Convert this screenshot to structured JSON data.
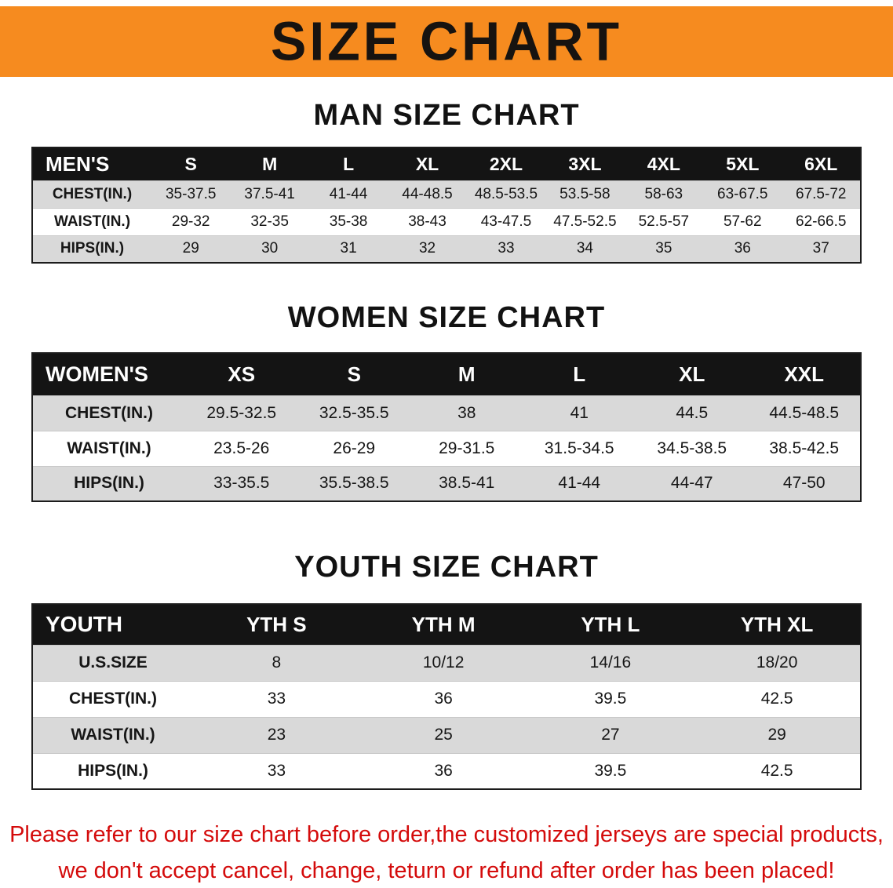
{
  "banner": {
    "title": "SIZE CHART",
    "background": "#f68b1f",
    "text_color": "#171310"
  },
  "footer": {
    "line1": "Please refer to our size chart before order,the customized jerseys are special products,",
    "line2": "we don't accept cancel, change, teturn or refund after order has been placed!",
    "color": "#d40b0b"
  },
  "chart_data": [
    {
      "type": "table",
      "title": "MAN SIZE CHART",
      "corner_label": "MEN'S",
      "columns": [
        "S",
        "M",
        "L",
        "XL",
        "2XL",
        "3XL",
        "4XL",
        "5XL",
        "6XL"
      ],
      "rows": [
        {
          "label": "CHEST(IN.)",
          "values": [
            "35-37.5",
            "37.5-41",
            "41-44",
            "44-48.5",
            "48.5-53.5",
            "53.5-58",
            "58-63",
            "63-67.5",
            "67.5-72"
          ]
        },
        {
          "label": "WAIST(IN.)",
          "values": [
            "29-32",
            "32-35",
            "35-38",
            "38-43",
            "43-47.5",
            "47.5-52.5",
            "52.5-57",
            "57-62",
            "62-66.5"
          ]
        },
        {
          "label": "HIPS(IN.)",
          "values": [
            "29",
            "30",
            "31",
            "32",
            "33",
            "34",
            "35",
            "36",
            "37"
          ]
        }
      ]
    },
    {
      "type": "table",
      "title": "WOMEN SIZE CHART",
      "corner_label": "WOMEN'S",
      "columns": [
        "XS",
        "S",
        "M",
        "L",
        "XL",
        "XXL"
      ],
      "rows": [
        {
          "label": "CHEST(IN.)",
          "values": [
            "29.5-32.5",
            "32.5-35.5",
            "38",
            "41",
            "44.5",
            "44.5-48.5"
          ]
        },
        {
          "label": "WAIST(IN.)",
          "values": [
            "23.5-26",
            "26-29",
            "29-31.5",
            "31.5-34.5",
            "34.5-38.5",
            "38.5-42.5"
          ]
        },
        {
          "label": "HIPS(IN.)",
          "values": [
            "33-35.5",
            "35.5-38.5",
            "38.5-41",
            "41-44",
            "44-47",
            "47-50"
          ]
        }
      ]
    },
    {
      "type": "table",
      "title": "YOUTH SIZE CHART",
      "corner_label": "YOUTH",
      "columns": [
        "YTH S",
        "YTH M",
        "YTH L",
        "YTH XL"
      ],
      "rows": [
        {
          "label": "U.S.SIZE",
          "values": [
            "8",
            "10/12",
            "14/16",
            "18/20"
          ]
        },
        {
          "label": "CHEST(IN.)",
          "values": [
            "33",
            "36",
            "39.5",
            "42.5"
          ]
        },
        {
          "label": "WAIST(IN.)",
          "values": [
            "23",
            "25",
            "27",
            "29"
          ]
        },
        {
          "label": "HIPS(IN.)",
          "values": [
            "33",
            "36",
            "39.5",
            "42.5"
          ]
        }
      ]
    }
  ]
}
